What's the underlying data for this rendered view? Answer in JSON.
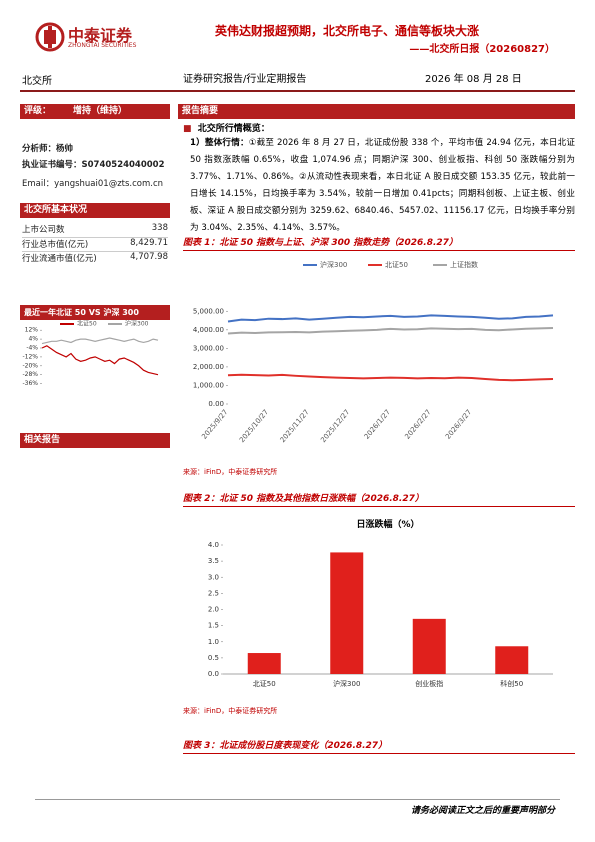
{
  "header": {
    "logo_cn": "中泰证券",
    "logo_en": "ZHONGTAI SECURITIES",
    "title": "英伟达财报超预期，北交所电子、通信等板块大涨",
    "subtitle": "——北交所日报（20260827）"
  },
  "meta": {
    "sector": "北交所",
    "report_type": "证券研究报告/行业定期报告",
    "date": "2026 年 08 月 28 日"
  },
  "sidebar": {
    "rating_label": "评级：",
    "rating": "增持（维持）",
    "analyst": "分析师：杨帅",
    "license": "执业证书编号：S0740524040002",
    "email": "Email：yangshuai01@zts.com.cn",
    "basics_title": "北交所基本状况",
    "basics": [
      [
        "上市公司数",
        "338"
      ],
      [
        "行业总市值(亿元)",
        "8,429.71"
      ],
      [
        "行业流通市值(亿元)",
        "4,707.98"
      ]
    ],
    "chart_title": "最近一年北证 50 VS 沪深 300",
    "related_title": "相关报告"
  },
  "summary": {
    "title": "报告摘要",
    "section": "北交所行情概览：",
    "lead": "1）整体行情：",
    "text": "①截至 2026 年 8 月 27 日，北证成份股 338 个，平均市值 24.94 亿元，本日北证 50 指数涨跌幅 0.65%，收盘 1,074.96 点；同期沪深 300、创业板指、科创 50 涨跌幅分别为 3.77%、1.71%、0.86%。②从流动性表现来看，本日北证 A 股日成交额 153.35 亿元，较此前一日增长 14.15%，日均换手率为 3.54%，较前一日增加 0.41pcts；同期科创板、上证主板、创业板、深证 A 股日成交额分别为 3259.62、6840.46、5457.02、11156.17 亿元，日均换手率分别为 3.04%、2.35%、4.14%、3.57%。"
  },
  "figures": [
    {
      "title": "图表 1：北证 50 指数与上证、沪深 300 指数走势（2026.8.27）",
      "source": "来源：iFinD，中泰证券研究所"
    },
    {
      "title": "图表 2：北证 50 指数及其他指数日涨跌幅（2026.8.27）",
      "source": "来源：iFinD，中泰证券研究所"
    },
    {
      "title": "图表 3：北证成份股日度表现变化（2026.8.27）"
    }
  ],
  "footer": "请务必阅读正文之后的重要声明部分",
  "chart_data": [
    {
      "type": "line",
      "categories": [
        "2025/9/27",
        null,
        null,
        "2025/10/27",
        null,
        null,
        "2025/11/27",
        null,
        null,
        "2025/12/27",
        null,
        null,
        "2026/1/27",
        null,
        null,
        "2026/2/27",
        null,
        null,
        "2026/3/27",
        null,
        null,
        null,
        null,
        null,
        null
      ],
      "series": [
        {
          "name": "沪深300",
          "color": "#4472c4",
          "values": [
            4450,
            4550,
            4520,
            4600,
            4580,
            4620,
            4550,
            4600,
            4650,
            4700,
            4680,
            4720,
            4750,
            4700,
            4720,
            4780,
            4750,
            4720,
            4700,
            4650,
            4600,
            4620,
            4700,
            4720,
            4780
          ]
        },
        {
          "name": "北证50",
          "color": "#e0302a",
          "values": [
            1550,
            1580,
            1560,
            1540,
            1570,
            1520,
            1480,
            1450,
            1420,
            1400,
            1380,
            1400,
            1420,
            1410,
            1380,
            1400,
            1390,
            1420,
            1400,
            1350,
            1300,
            1280,
            1300,
            1330,
            1350
          ]
        },
        {
          "name": "上证指数",
          "color": "#a5a5a5",
          "values": [
            3800,
            3850,
            3830,
            3860,
            3870,
            3880,
            3860,
            3900,
            3920,
            3950,
            3970,
            4000,
            4050,
            4020,
            4030,
            4080,
            4060,
            4040,
            4050,
            4000,
            3980,
            4020,
            4060,
            4080,
            4100
          ]
        }
      ],
      "ylim": [
        0,
        5500
      ],
      "yticks": [
        {
          "value": 0,
          "label": "0.00"
        },
        {
          "value": 1000,
          "label": "1,000.00"
        },
        {
          "value": 2000,
          "label": "2,000.00"
        },
        {
          "value": 3000,
          "label": "3,000.00"
        },
        {
          "value": 4000,
          "label": "4,000.00"
        },
        {
          "value": 5000,
          "label": "5,000.00"
        }
      ]
    },
    {
      "type": "bar",
      "title": "日涨跌幅（%）",
      "categories": [
        "北证50",
        "沪深300",
        "创业板指",
        "科创50"
      ],
      "values": [
        0.65,
        3.77,
        1.71,
        0.86
      ],
      "color": "#e0201c",
      "ylim": [
        0,
        4
      ],
      "yticks": [
        {
          "value": 0,
          "label": "0.0"
        },
        {
          "value": 0.5,
          "label": "0.5"
        },
        {
          "value": 1,
          "label": "1.0"
        },
        {
          "value": 1.5,
          "label": "1.5"
        },
        {
          "value": 2,
          "label": "2.0"
        },
        {
          "value": 2.5,
          "label": "2.5"
        },
        {
          "value": 3,
          "label": "3.0"
        },
        {
          "value": 3.5,
          "label": "3.5"
        },
        {
          "value": 4,
          "label": "4.0"
        }
      ]
    },
    {
      "type": "line",
      "series": [
        {
          "name": "北证50",
          "color": "#c00000",
          "values": [
            -4,
            -2,
            -5,
            -8,
            -10,
            -12,
            -9,
            -14,
            -16,
            -15,
            -13,
            -12,
            -14,
            -16,
            -15,
            -18,
            -14,
            -13,
            -15,
            -17,
            -20,
            -24,
            -26,
            -27,
            -28
          ]
        },
        {
          "name": "沪深300",
          "color": "#a5a5a5",
          "values": [
            0,
            1,
            2,
            2,
            3,
            2,
            1,
            3,
            4,
            4,
            3,
            2,
            3,
            4,
            5,
            4,
            3,
            2,
            3,
            4,
            2,
            1,
            2,
            4,
            3
          ]
        }
      ],
      "ylim": [
        -40,
        14
      ],
      "yticks": [
        {
          "value": 12,
          "label": "12%"
        },
        {
          "value": 4,
          "label": "4%"
        },
        {
          "value": -4,
          "label": "-4%"
        },
        {
          "value": -12,
          "label": "-12%"
        },
        {
          "value": -20,
          "label": "-20%"
        },
        {
          "value": -28,
          "label": "-28%"
        },
        {
          "value": -36,
          "label": "-36%"
        }
      ]
    }
  ]
}
